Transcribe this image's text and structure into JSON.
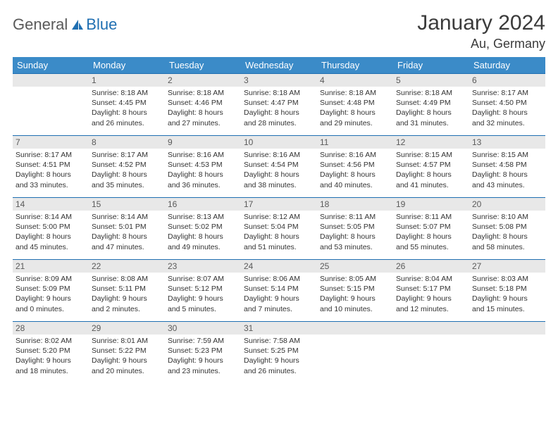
{
  "logo": {
    "text1": "General",
    "text2": "Blue"
  },
  "title": {
    "month": "January 2024",
    "location": "Au, Germany"
  },
  "colors": {
    "header_bg": "#3b8bc8",
    "header_fg": "#ffffff",
    "row_border": "#1f6fb2",
    "daynum_bg": "#e8e8e8",
    "daynum_fg": "#5a5a5a",
    "text": "#333333",
    "logo_gray": "#5a5a5a",
    "logo_blue": "#1f6fb2",
    "page_bg": "#ffffff"
  },
  "weekdays": [
    "Sunday",
    "Monday",
    "Tuesday",
    "Wednesday",
    "Thursday",
    "Friday",
    "Saturday"
  ],
  "calendar": {
    "type": "table",
    "columns": 7,
    "rows": 5,
    "font_size_cell": 10.5,
    "font_size_daynum": 12,
    "font_size_header": 13
  },
  "cells": [
    [
      {
        "day": "",
        "lines": [
          "",
          "",
          "",
          ""
        ]
      },
      {
        "day": "1",
        "lines": [
          "Sunrise: 8:18 AM",
          "Sunset: 4:45 PM",
          "Daylight: 8 hours",
          "and 26 minutes."
        ]
      },
      {
        "day": "2",
        "lines": [
          "Sunrise: 8:18 AM",
          "Sunset: 4:46 PM",
          "Daylight: 8 hours",
          "and 27 minutes."
        ]
      },
      {
        "day": "3",
        "lines": [
          "Sunrise: 8:18 AM",
          "Sunset: 4:47 PM",
          "Daylight: 8 hours",
          "and 28 minutes."
        ]
      },
      {
        "day": "4",
        "lines": [
          "Sunrise: 8:18 AM",
          "Sunset: 4:48 PM",
          "Daylight: 8 hours",
          "and 29 minutes."
        ]
      },
      {
        "day": "5",
        "lines": [
          "Sunrise: 8:18 AM",
          "Sunset: 4:49 PM",
          "Daylight: 8 hours",
          "and 31 minutes."
        ]
      },
      {
        "day": "6",
        "lines": [
          "Sunrise: 8:17 AM",
          "Sunset: 4:50 PM",
          "Daylight: 8 hours",
          "and 32 minutes."
        ]
      }
    ],
    [
      {
        "day": "7",
        "lines": [
          "Sunrise: 8:17 AM",
          "Sunset: 4:51 PM",
          "Daylight: 8 hours",
          "and 33 minutes."
        ]
      },
      {
        "day": "8",
        "lines": [
          "Sunrise: 8:17 AM",
          "Sunset: 4:52 PM",
          "Daylight: 8 hours",
          "and 35 minutes."
        ]
      },
      {
        "day": "9",
        "lines": [
          "Sunrise: 8:16 AM",
          "Sunset: 4:53 PM",
          "Daylight: 8 hours",
          "and 36 minutes."
        ]
      },
      {
        "day": "10",
        "lines": [
          "Sunrise: 8:16 AM",
          "Sunset: 4:54 PM",
          "Daylight: 8 hours",
          "and 38 minutes."
        ]
      },
      {
        "day": "11",
        "lines": [
          "Sunrise: 8:16 AM",
          "Sunset: 4:56 PM",
          "Daylight: 8 hours",
          "and 40 minutes."
        ]
      },
      {
        "day": "12",
        "lines": [
          "Sunrise: 8:15 AM",
          "Sunset: 4:57 PM",
          "Daylight: 8 hours",
          "and 41 minutes."
        ]
      },
      {
        "day": "13",
        "lines": [
          "Sunrise: 8:15 AM",
          "Sunset: 4:58 PM",
          "Daylight: 8 hours",
          "and 43 minutes."
        ]
      }
    ],
    [
      {
        "day": "14",
        "lines": [
          "Sunrise: 8:14 AM",
          "Sunset: 5:00 PM",
          "Daylight: 8 hours",
          "and 45 minutes."
        ]
      },
      {
        "day": "15",
        "lines": [
          "Sunrise: 8:14 AM",
          "Sunset: 5:01 PM",
          "Daylight: 8 hours",
          "and 47 minutes."
        ]
      },
      {
        "day": "16",
        "lines": [
          "Sunrise: 8:13 AM",
          "Sunset: 5:02 PM",
          "Daylight: 8 hours",
          "and 49 minutes."
        ]
      },
      {
        "day": "17",
        "lines": [
          "Sunrise: 8:12 AM",
          "Sunset: 5:04 PM",
          "Daylight: 8 hours",
          "and 51 minutes."
        ]
      },
      {
        "day": "18",
        "lines": [
          "Sunrise: 8:11 AM",
          "Sunset: 5:05 PM",
          "Daylight: 8 hours",
          "and 53 minutes."
        ]
      },
      {
        "day": "19",
        "lines": [
          "Sunrise: 8:11 AM",
          "Sunset: 5:07 PM",
          "Daylight: 8 hours",
          "and 55 minutes."
        ]
      },
      {
        "day": "20",
        "lines": [
          "Sunrise: 8:10 AM",
          "Sunset: 5:08 PM",
          "Daylight: 8 hours",
          "and 58 minutes."
        ]
      }
    ],
    [
      {
        "day": "21",
        "lines": [
          "Sunrise: 8:09 AM",
          "Sunset: 5:09 PM",
          "Daylight: 9 hours",
          "and 0 minutes."
        ]
      },
      {
        "day": "22",
        "lines": [
          "Sunrise: 8:08 AM",
          "Sunset: 5:11 PM",
          "Daylight: 9 hours",
          "and 2 minutes."
        ]
      },
      {
        "day": "23",
        "lines": [
          "Sunrise: 8:07 AM",
          "Sunset: 5:12 PM",
          "Daylight: 9 hours",
          "and 5 minutes."
        ]
      },
      {
        "day": "24",
        "lines": [
          "Sunrise: 8:06 AM",
          "Sunset: 5:14 PM",
          "Daylight: 9 hours",
          "and 7 minutes."
        ]
      },
      {
        "day": "25",
        "lines": [
          "Sunrise: 8:05 AM",
          "Sunset: 5:15 PM",
          "Daylight: 9 hours",
          "and 10 minutes."
        ]
      },
      {
        "day": "26",
        "lines": [
          "Sunrise: 8:04 AM",
          "Sunset: 5:17 PM",
          "Daylight: 9 hours",
          "and 12 minutes."
        ]
      },
      {
        "day": "27",
        "lines": [
          "Sunrise: 8:03 AM",
          "Sunset: 5:18 PM",
          "Daylight: 9 hours",
          "and 15 minutes."
        ]
      }
    ],
    [
      {
        "day": "28",
        "lines": [
          "Sunrise: 8:02 AM",
          "Sunset: 5:20 PM",
          "Daylight: 9 hours",
          "and 18 minutes."
        ]
      },
      {
        "day": "29",
        "lines": [
          "Sunrise: 8:01 AM",
          "Sunset: 5:22 PM",
          "Daylight: 9 hours",
          "and 20 minutes."
        ]
      },
      {
        "day": "30",
        "lines": [
          "Sunrise: 7:59 AM",
          "Sunset: 5:23 PM",
          "Daylight: 9 hours",
          "and 23 minutes."
        ]
      },
      {
        "day": "31",
        "lines": [
          "Sunrise: 7:58 AM",
          "Sunset: 5:25 PM",
          "Daylight: 9 hours",
          "and 26 minutes."
        ]
      },
      {
        "day": "",
        "lines": [
          "",
          "",
          "",
          ""
        ]
      },
      {
        "day": "",
        "lines": [
          "",
          "",
          "",
          ""
        ]
      },
      {
        "day": "",
        "lines": [
          "",
          "",
          "",
          ""
        ]
      }
    ]
  ]
}
